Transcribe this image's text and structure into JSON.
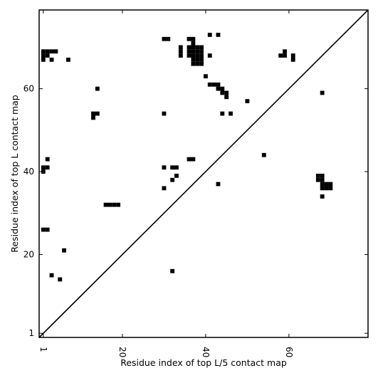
{
  "chart_data": {
    "type": "heatmap",
    "title": "",
    "xlabel": "Residue index of top L/5 contact map",
    "ylabel": "Residue index of top L contact map",
    "xlim": [
      0,
      79
    ],
    "ylim": [
      0,
      79
    ],
    "x_ticks": [
      1,
      20,
      40,
      60
    ],
    "y_ticks": [
      1,
      20,
      40,
      60
    ],
    "x_tick_labels": [
      "1",
      "20",
      "40",
      "60"
    ],
    "y_tick_labels": [
      "1",
      "20",
      "40",
      "60"
    ],
    "grid": false,
    "diagonal": true,
    "cell_color": "#000000",
    "contacts_above_diagonal": [
      [
        1,
        67
      ],
      [
        1,
        68
      ],
      [
        1,
        69
      ],
      [
        2,
        68
      ],
      [
        2,
        69
      ],
      [
        3,
        69
      ],
      [
        3,
        67
      ],
      [
        4,
        69
      ],
      [
        7,
        67
      ],
      [
        1,
        40
      ],
      [
        1,
        41
      ],
      [
        2,
        41
      ],
      [
        2,
        43
      ],
      [
        1,
        26
      ],
      [
        2,
        26
      ],
      [
        13,
        53
      ],
      [
        13,
        54
      ],
      [
        14,
        54
      ],
      [
        14,
        60
      ],
      [
        16,
        32
      ],
      [
        17,
        32
      ],
      [
        18,
        32
      ],
      [
        19,
        32
      ],
      [
        30,
        72
      ],
      [
        31,
        72
      ],
      [
        30,
        54
      ],
      [
        30,
        41
      ],
      [
        30,
        36
      ],
      [
        32,
        41
      ],
      [
        33,
        41
      ],
      [
        32,
        38
      ],
      [
        33,
        39
      ],
      [
        34,
        68
      ],
      [
        34,
        69
      ],
      [
        34,
        70
      ],
      [
        36,
        68
      ],
      [
        36,
        69
      ],
      [
        36,
        70
      ],
      [
        36,
        72
      ],
      [
        37,
        66
      ],
      [
        37,
        67
      ],
      [
        37,
        68
      ],
      [
        37,
        69
      ],
      [
        37,
        70
      ],
      [
        37,
        71
      ],
      [
        37,
        72
      ],
      [
        38,
        66
      ],
      [
        38,
        67
      ],
      [
        38,
        68
      ],
      [
        38,
        69
      ],
      [
        38,
        70
      ],
      [
        39,
        66
      ],
      [
        39,
        67
      ],
      [
        39,
        68
      ],
      [
        39,
        69
      ],
      [
        39,
        70
      ],
      [
        36,
        43
      ],
      [
        37,
        43
      ],
      [
        40,
        63
      ],
      [
        41,
        73
      ],
      [
        41,
        68
      ],
      [
        41,
        61
      ],
      [
        42,
        61
      ],
      [
        43,
        61
      ],
      [
        43,
        73
      ],
      [
        43,
        60
      ],
      [
        43,
        37
      ],
      [
        44,
        60
      ],
      [
        44,
        59
      ],
      [
        44,
        54
      ],
      [
        45,
        59
      ],
      [
        45,
        58
      ],
      [
        46,
        54
      ],
      [
        50,
        57
      ],
      [
        54,
        44
      ],
      [
        58,
        68
      ],
      [
        59,
        68
      ],
      [
        59,
        69
      ],
      [
        61,
        67
      ],
      [
        61,
        68
      ],
      [
        67,
        38
      ],
      [
        67,
        39
      ],
      [
        68,
        38
      ],
      [
        68,
        39
      ],
      [
        68,
        59
      ],
      [
        68,
        34
      ],
      [
        68,
        36
      ],
      [
        68,
        37
      ],
      [
        69,
        36
      ],
      [
        69,
        37
      ],
      [
        70,
        36
      ],
      [
        70,
        37
      ]
    ],
    "contacts_below_diagonal": [
      [
        3,
        15
      ],
      [
        6,
        21
      ],
      [
        5,
        14
      ],
      [
        32,
        16
      ]
    ]
  }
}
